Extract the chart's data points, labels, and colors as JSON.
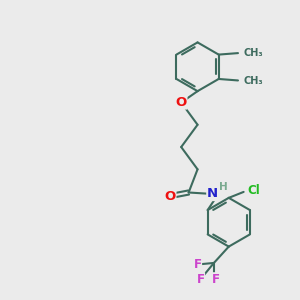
{
  "background_color": "#ebebeb",
  "bond_color": "#3d6b5e",
  "bond_width": 1.5,
  "atom_colors": {
    "O": "#ee1111",
    "N": "#2222cc",
    "Cl": "#22bb22",
    "F": "#cc44cc",
    "C": "#3d6b5e",
    "H": "#7aaa90"
  },
  "font_size": 8.5
}
